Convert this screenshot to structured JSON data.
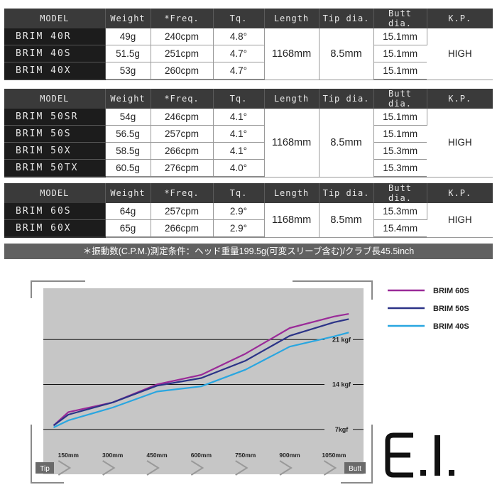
{
  "headers": {
    "model": "MODEL",
    "weight": "Weight",
    "freq": "*Freq.",
    "tq": "Tq.",
    "length": "Length",
    "tip": "Tip dia.",
    "butt": "Butt dia.",
    "kp": "K.P."
  },
  "tables": [
    {
      "rows": [
        {
          "model": "BRIM 40R",
          "weight": "49g",
          "freq": "240cpm",
          "tq": "4.8°",
          "butt": "15.1mm"
        },
        {
          "model": "BRIM 40S",
          "weight": "51.5g",
          "freq": "251cpm",
          "tq": "4.7°",
          "butt": "15.1mm"
        },
        {
          "model": "BRIM 40X",
          "weight": "53g",
          "freq": "260cpm",
          "tq": "4.7°",
          "butt": "15.1mm"
        }
      ],
      "length": "1168mm",
      "tip": "8.5mm",
      "kp": "HIGH"
    },
    {
      "rows": [
        {
          "model": "BRIM 50SR",
          "weight": "54g",
          "freq": "246cpm",
          "tq": "4.1°",
          "butt": "15.1mm"
        },
        {
          "model": "BRIM 50S",
          "weight": "56.5g",
          "freq": "257cpm",
          "tq": "4.1°",
          "butt": "15.1mm"
        },
        {
          "model": "BRIM 50X",
          "weight": "58.5g",
          "freq": "266cpm",
          "tq": "4.1°",
          "butt": "15.3mm"
        },
        {
          "model": "BRIM 50TX",
          "weight": "60.5g",
          "freq": "276cpm",
          "tq": "4.0°",
          "butt": "15.3mm"
        }
      ],
      "length": "1168mm",
      "tip": "8.5mm",
      "kp": "HIGH"
    },
    {
      "rows": [
        {
          "model": "BRIM 60S",
          "weight": "64g",
          "freq": "257cpm",
          "tq": "2.9°",
          "butt": "15.3mm"
        },
        {
          "model": "BRIM 60X",
          "weight": "65g",
          "freq": "266cpm",
          "tq": "2.9°",
          "butt": "15.4mm"
        }
      ],
      "length": "1168mm",
      "tip": "8.5mm",
      "kp": "HIGH"
    }
  ],
  "note": "＊振動数(C.P.M.)測定条件：ヘッド重量199.5g(可変スリーブ含む)/クラブ長45.5inch",
  "chart_data": {
    "type": "line",
    "x": [
      100,
      150,
      300,
      450,
      600,
      750,
      900,
      1050,
      1100
    ],
    "x_tick_labels": [
      "150mm",
      "300mm",
      "450mm",
      "600mm",
      "750mm",
      "900mm",
      "1050mm"
    ],
    "x_ticks": [
      150,
      300,
      450,
      600,
      750,
      900,
      1050
    ],
    "xlim": [
      65,
      1150
    ],
    "ylim": [
      0,
      29
    ],
    "y_ticks": [
      7,
      14,
      21
    ],
    "y_tick_labels": [
      "7kgf",
      "14 kgf",
      "21 kgf"
    ],
    "tip_label": "Tip",
    "butt_label": "Butt",
    "series": [
      {
        "name": "BRIM 60S",
        "color": "#9a2a98",
        "values": [
          7.6,
          9.7,
          11.2,
          14.0,
          15.5,
          18.8,
          22.8,
          24.6,
          25.0
        ]
      },
      {
        "name": "BRIM 50S",
        "color": "#2b3387",
        "values": [
          7.6,
          9.3,
          11.2,
          13.8,
          15.0,
          17.7,
          21.6,
          23.7,
          24.2
        ]
      },
      {
        "name": "BRIM 40S",
        "color": "#29a6e0",
        "values": [
          7.3,
          8.4,
          10.4,
          12.9,
          13.7,
          16.3,
          19.9,
          21.5,
          22.1
        ]
      }
    ]
  },
  "logo_text": "E.I."
}
